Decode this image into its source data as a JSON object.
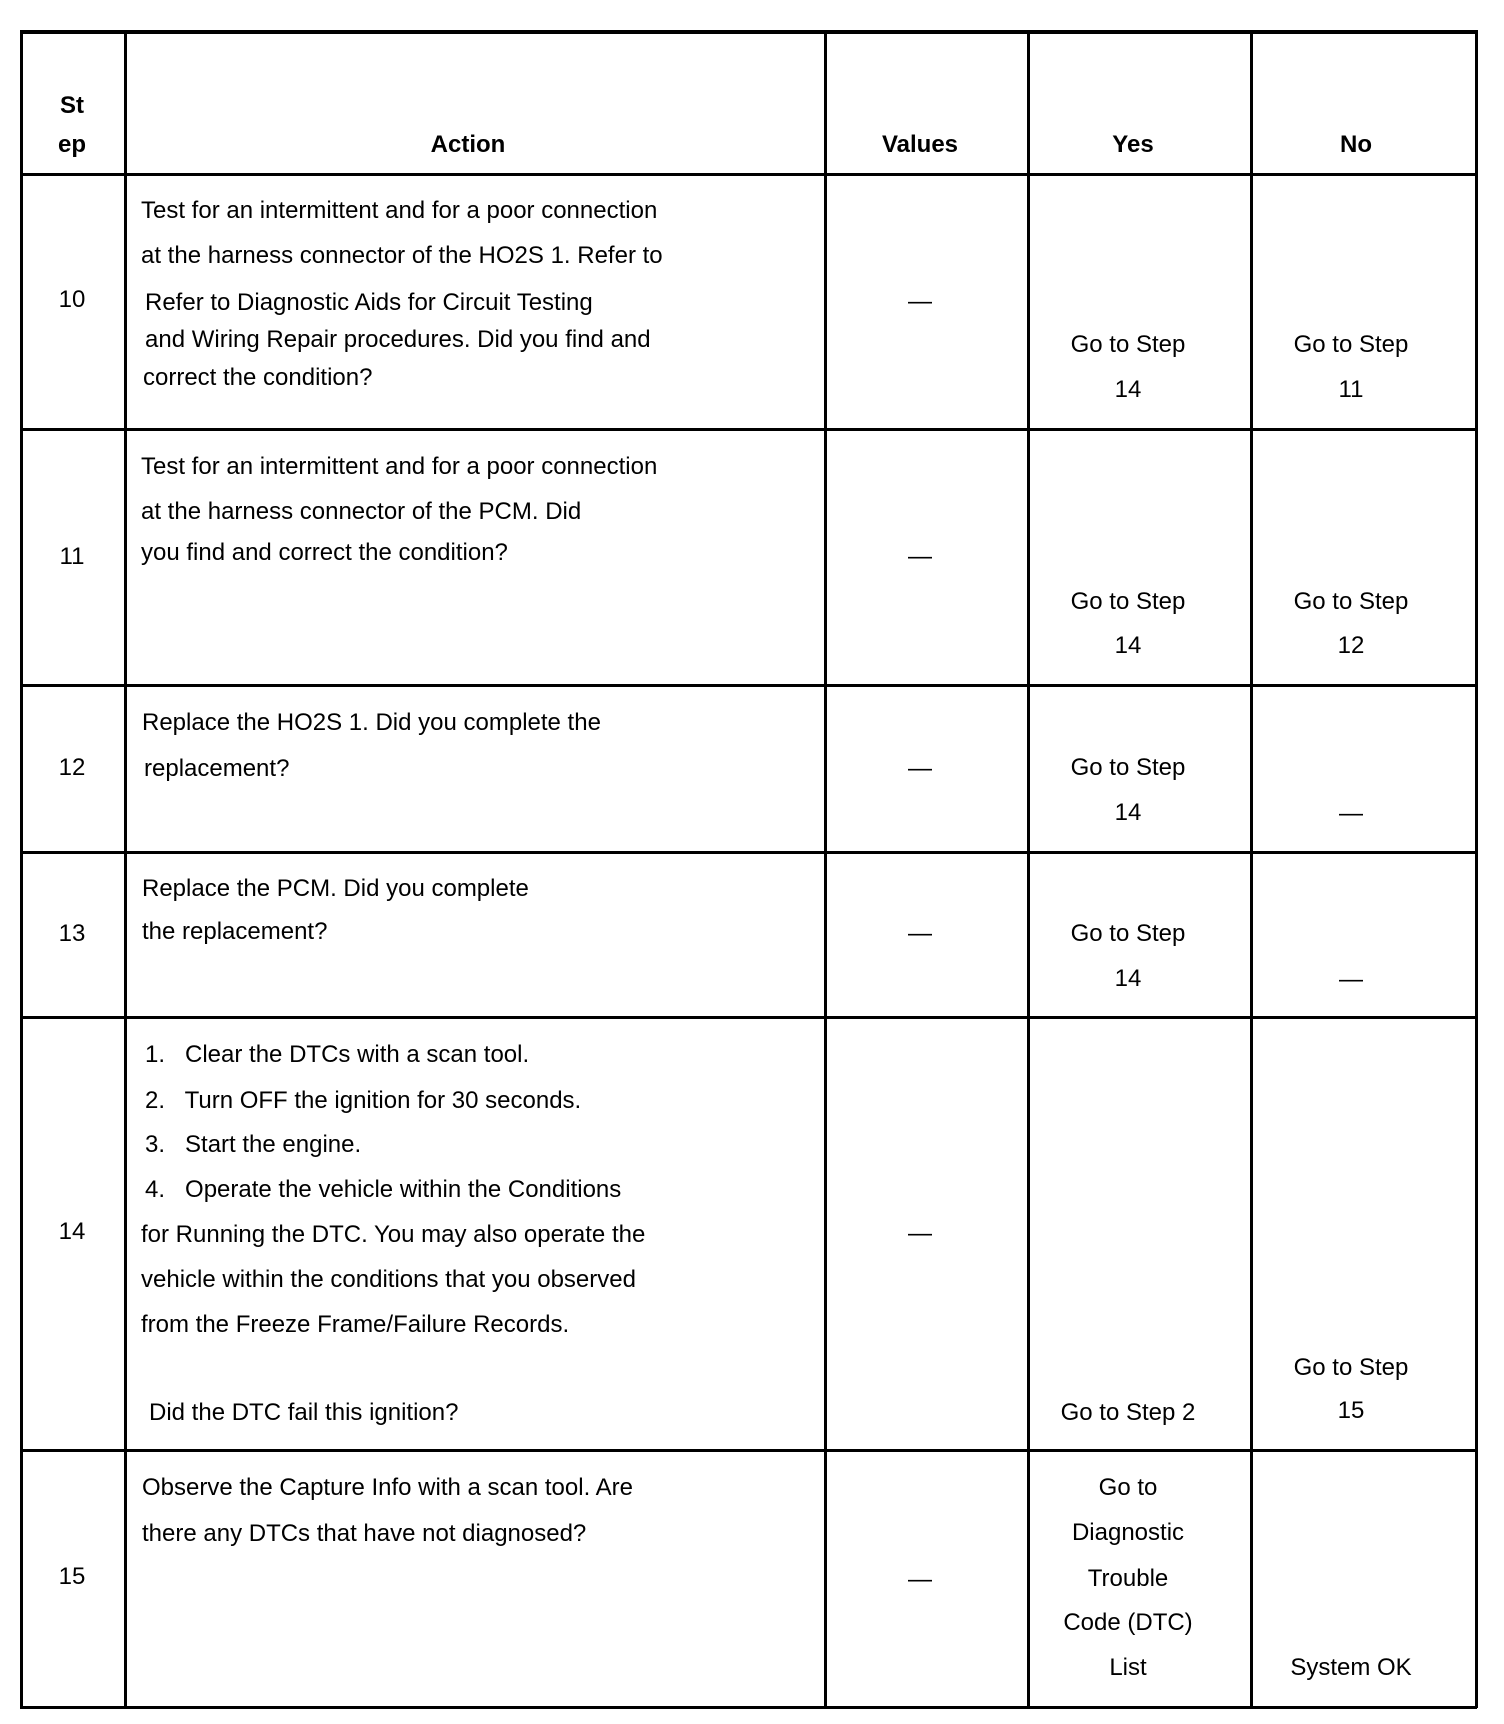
{
  "header": {
    "step": [
      "St",
      "ep"
    ],
    "action": "Action",
    "values": "Values",
    "yes": "Yes",
    "no": "No"
  },
  "rows": [
    {
      "step": "10",
      "action": [
        "Test for an intermittent and for a poor connection",
        "at the harness connector of the HO2S 1. Refer to",
        "Refer to Diagnostic Aids for Circuit Testing",
        "and Wiring Repair procedures. Did you find and",
        "correct the condition?"
      ],
      "values": "—",
      "yes": [
        "Go to Step",
        "14"
      ],
      "no": [
        "Go to Step",
        "11"
      ]
    },
    {
      "step": "11",
      "action": [
        "Test for an intermittent and for a poor connection",
        "at the harness connector of the PCM. Did",
        "you find and correct the condition?"
      ],
      "values": "—",
      "yes": [
        "Go to Step",
        "14"
      ],
      "no": [
        "Go to Step",
        "12"
      ]
    },
    {
      "step": "12",
      "action": [
        "Replace the HO2S 1. Did you complete the",
        "replacement?"
      ],
      "values": "—",
      "yes": [
        "Go to Step",
        "14"
      ],
      "no": [
        "—"
      ]
    },
    {
      "step": "13",
      "action": [
        "Replace the PCM. Did you complete",
        "the replacement?"
      ],
      "values": "—",
      "yes": [
        "Go to Step",
        "14"
      ],
      "no": [
        "—"
      ]
    },
    {
      "step": "14",
      "action": [
        "1.   Clear the DTCs with a scan tool.",
        "2.   Turn OFF the ignition for 30 seconds.",
        "3.   Start the engine.",
        "4.   Operate the vehicle within the Conditions",
        "for Running the DTC. You may also operate the",
        "vehicle within the conditions that you observed",
        "from the Freeze Frame/Failure Records.",
        "Did the DTC fail this ignition?"
      ],
      "values": "—",
      "yes": [
        "Go to Step 2"
      ],
      "no": [
        "Go to Step",
        "15"
      ]
    },
    {
      "step": "15",
      "action": [
        "Observe the Capture Info with a scan tool. Are",
        "there any DTCs that have not diagnosed?"
      ],
      "values": "—",
      "yes": [
        "Go to",
        "Diagnostic",
        "Trouble",
        "Code (DTC)",
        "List"
      ],
      "no": [
        "System OK"
      ]
    }
  ]
}
